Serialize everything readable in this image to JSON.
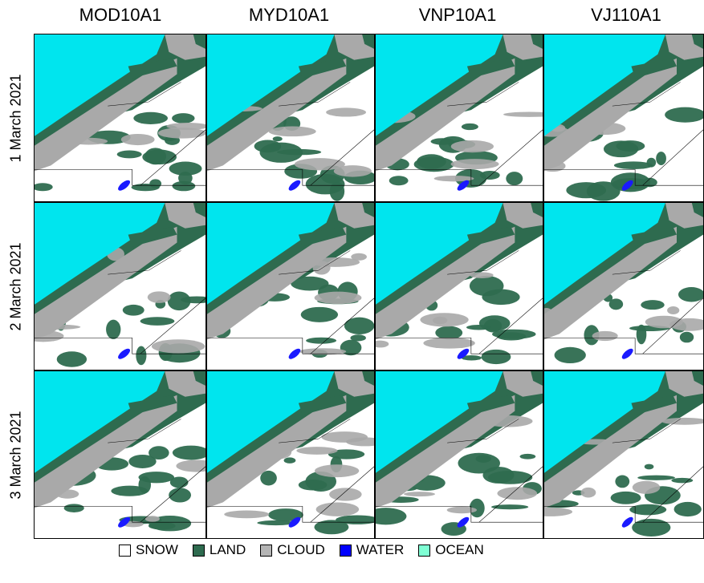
{
  "columns": [
    "MOD10A1",
    "MYD10A1",
    "VNP10A1",
    "VJ110A1"
  ],
  "rows": [
    "1 March 2021",
    "2 March 2021",
    "3 March 2021"
  ],
  "legend": [
    {
      "label": "SNOW",
      "color": "#ffffff"
    },
    {
      "label": "LAND",
      "color": "#2e6b4f"
    },
    {
      "label": "CLOUD",
      "color": "#b4b4b4"
    },
    {
      "label": "WATER",
      "color": "#0000ff"
    },
    {
      "label": "OCEAN",
      "color": "#7fffd4"
    }
  ],
  "colors": {
    "ocean": "#00e5ee",
    "land": "#2e6b4f",
    "cloud": "#a9a9a9",
    "snow": "#ffffff",
    "water": "#1a1aff"
  }
}
